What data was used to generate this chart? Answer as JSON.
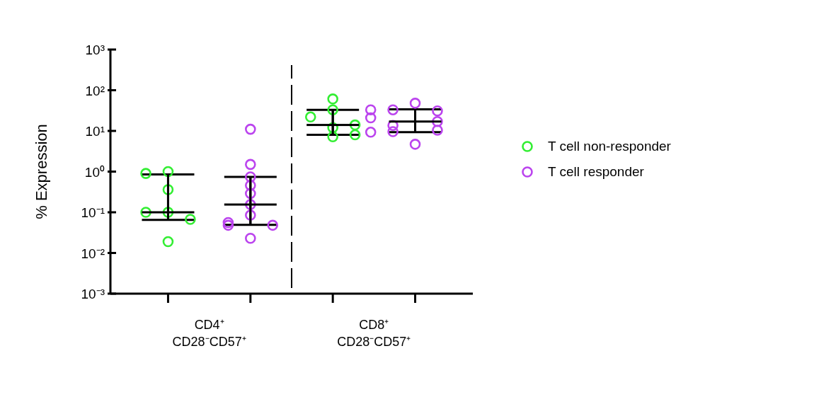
{
  "chart_data": {
    "type": "scatter",
    "ylabel": "% Expression",
    "log": "y",
    "ylim": [
      0.001,
      1000
    ],
    "yticks": [
      {
        "value": 0.001,
        "label": "10⁻³"
      },
      {
        "value": 0.01,
        "label": "10⁻²"
      },
      {
        "value": 0.1,
        "label": "10⁻¹"
      },
      {
        "value": 1,
        "label": "10⁰"
      },
      {
        "value": 10,
        "label": "10¹"
      },
      {
        "value": 100,
        "label": "10²"
      },
      {
        "value": 1000,
        "label": "10³"
      }
    ],
    "categories": [
      "CD4⁺\nCD28⁻CD57⁺",
      "CD8⁺\nCD28⁻CD57⁺"
    ],
    "legend": "right",
    "marker": "circle",
    "series": [
      {
        "name": "T cell non-responder",
        "color": "#33ee33",
        "x": [
          "CD4⁺\nCD28⁻CD57⁺",
          "CD4⁺\nCD28⁻CD57⁺",
          "CD4⁺\nCD28⁻CD57⁺",
          "CD4⁺\nCD28⁻CD57⁺",
          "CD4⁺\nCD28⁻CD57⁺",
          "CD4⁺\nCD28⁻CD57⁺",
          "CD4⁺\nCD28⁻CD57⁺",
          "CD8⁺\nCD28⁻CD57⁺",
          "CD8⁺\nCD28⁻CD57⁺",
          "CD8⁺\nCD28⁻CD57⁺",
          "CD8⁺\nCD28⁻CD57⁺",
          "CD8⁺\nCD28⁻CD57⁺",
          "CD8⁺\nCD28⁻CD57⁺",
          "CD8⁺\nCD28⁻CD57⁺"
        ],
        "values": [
          1.0,
          0.9,
          0.36,
          0.1,
          0.1,
          0.067,
          0.019,
          61,
          33,
          22,
          12,
          14,
          7.2,
          8
        ]
      },
      {
        "name": "T cell responder",
        "color": "#bb44ee",
        "x": [
          "CD4⁺\nCD28⁻CD57⁺",
          "CD4⁺\nCD28⁻CD57⁺",
          "CD4⁺\nCD28⁻CD57⁺",
          "CD4⁺\nCD28⁻CD57⁺",
          "CD4⁺\nCD28⁻CD57⁺",
          "CD4⁺\nCD28⁻CD57⁺",
          "CD4⁺\nCD28⁻CD57⁺",
          "CD4⁺\nCD28⁻CD57⁺",
          "CD4⁺\nCD28⁻CD57⁺",
          "CD4⁺\nCD28⁻CD57⁺",
          "CD4⁺\nCD28⁻CD57⁺",
          "CD8⁺\nCD28⁻CD57⁺",
          "CD8⁺\nCD28⁻CD57⁺",
          "CD8⁺\nCD28⁻CD57⁺",
          "CD8⁺\nCD28⁻CD57⁺",
          "CD8⁺\nCD28⁻CD57⁺",
          "CD8⁺\nCD28⁻CD57⁺",
          "CD8⁺\nCD28⁻CD57⁺",
          "CD8⁺\nCD28⁻CD57⁺",
          "CD8⁺\nCD28⁻CD57⁺",
          "CD8⁺\nCD28⁻CD57⁺",
          "CD8⁺\nCD28⁻CD57⁺"
        ],
        "values": [
          11,
          1.5,
          0.74,
          0.46,
          0.29,
          0.155,
          0.085,
          0.056,
          0.048,
          0.048,
          0.023,
          48,
          33,
          31,
          33,
          21,
          13.6,
          17,
          9.6,
          10.4,
          9.3,
          4.7
        ]
      },
      {
        "type": "box",
        "color": "#000000",
        "boxes": [
          {
            "low": 0.065,
            "q1": 0.065,
            "median": 0.1,
            "q3": 0.85,
            "high": 0.85
          },
          {
            "low": 8,
            "q1": 8,
            "median": 14,
            "q3": 33,
            "high": 33
          }
        ]
      },
      {
        "type": "box",
        "color": "#000000",
        "boxes": [
          {
            "low": 0.049,
            "q1": 0.049,
            "median": 0.155,
            "q3": 0.74,
            "high": 0.74
          },
          {
            "low": 9.3,
            "q1": 9.3,
            "median": 17,
            "q3": 34,
            "high": 34
          }
        ]
      }
    ]
  }
}
